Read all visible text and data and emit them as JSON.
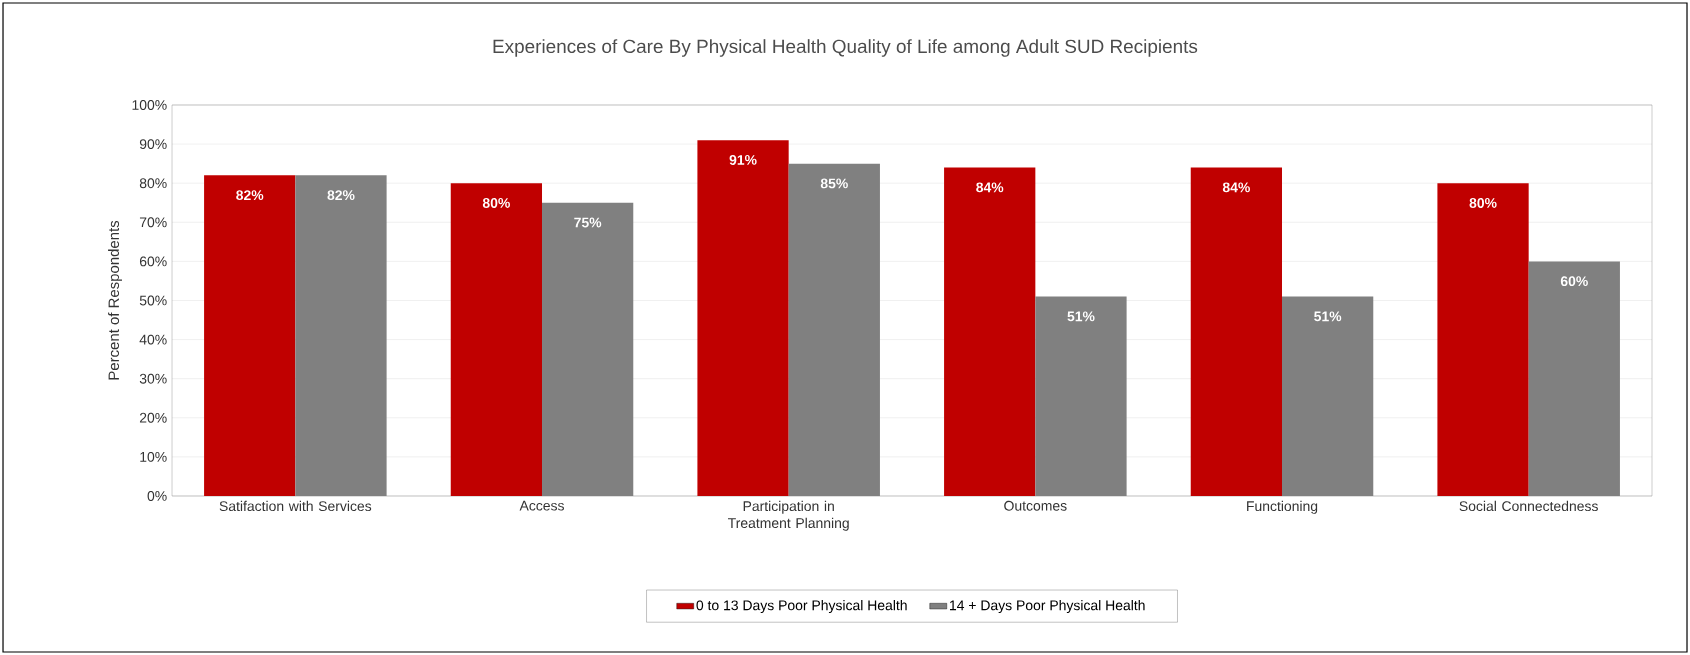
{
  "chart_data": {
    "type": "bar",
    "title": "Experiences of Care By Physical Health Quality of Life among Adult SUD Recipients",
    "ylabel": "Percent of Respondents",
    "categories": [
      "Satifaction with Services",
      "Access",
      "Participation in Treatment Planning",
      "Outcomes",
      "Functioning",
      "Social Connectedness"
    ],
    "series": [
      {
        "name": "0 to 13 Days Poor Physical Health",
        "color": "#c00000",
        "values": [
          82,
          80,
          91,
          84,
          84,
          80
        ],
        "value_labels": [
          "82%",
          "80%",
          "91%",
          "84%",
          "84%",
          "80%"
        ]
      },
      {
        "name": "14 + Days Poor Physical Health",
        "color": "#808080",
        "values": [
          82,
          75,
          85,
          51,
          51,
          60
        ],
        "value_labels": [
          "82%",
          "75%",
          "85%",
          "51%",
          "51%",
          "60%"
        ]
      }
    ],
    "ylim": [
      0,
      100
    ],
    "yticks": [
      {
        "value": 0,
        "label": "0%"
      },
      {
        "value": 10,
        "label": "10%"
      },
      {
        "value": 20,
        "label": "20%"
      },
      {
        "value": 30,
        "label": "30%"
      },
      {
        "value": 40,
        "label": "40%"
      },
      {
        "value": 50,
        "label": "50%"
      },
      {
        "value": 60,
        "label": "60%"
      },
      {
        "value": 70,
        "label": "70%"
      },
      {
        "value": 80,
        "label": "80%"
      },
      {
        "value": 90,
        "label": "90%"
      },
      {
        "value": 100,
        "label": "100%"
      }
    ],
    "grid": "y",
    "legend": "bottom"
  }
}
